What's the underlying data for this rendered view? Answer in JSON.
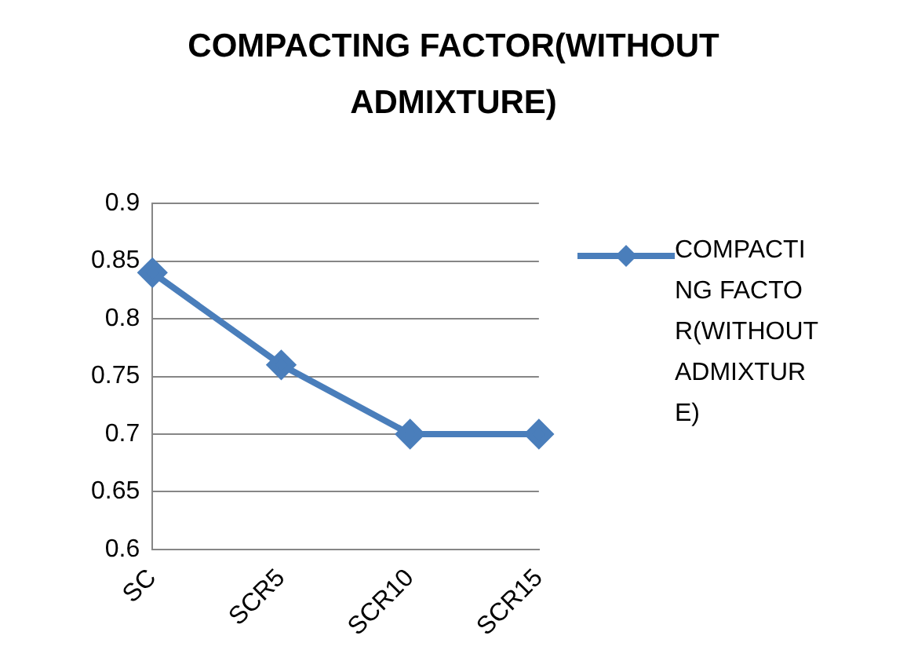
{
  "chart_data": {
    "type": "line",
    "title": "COMPACTING FACTOR(WITHOUT ADMIXTURE)",
    "categories": [
      "SC",
      "SCR5",
      "SCR10",
      "SCR15"
    ],
    "series": [
      {
        "name": "COMPACTING FACTOR(WITHOUT ADMIXTURE)",
        "color": "#4a7ebb",
        "values": [
          0.84,
          0.76,
          0.7,
          0.7
        ]
      }
    ],
    "ylim": [
      0.6,
      0.9
    ],
    "yticks": [
      0.6,
      0.65,
      0.7,
      0.75,
      0.8,
      0.85,
      0.9
    ],
    "grid": "y",
    "legend": "right",
    "marker": "diamond",
    "line_style": "solid"
  }
}
